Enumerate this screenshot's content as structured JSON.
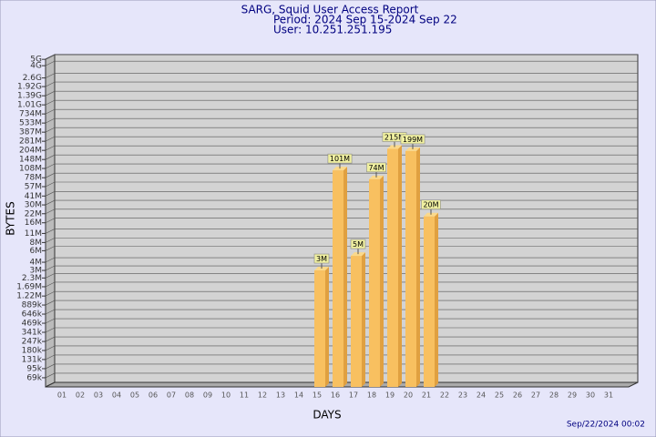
{
  "chart_data": {
    "type": "bar",
    "title": "SARG, Squid User Access Report",
    "subtitle_lines": [
      "Period: 2024 Sep 15-2024 Sep 22",
      "User: 10.251.251.195"
    ],
    "x_label": "DAYS",
    "y_label": "BYTES",
    "timestamp": "Sep/22/2024 00:02",
    "log_scale": true,
    "grid": true,
    "color": "#f8c060",
    "categories": [
      "01",
      "02",
      "03",
      "04",
      "05",
      "06",
      "07",
      "08",
      "09",
      "10",
      "11",
      "12",
      "13",
      "14",
      "15",
      "16",
      "17",
      "18",
      "19",
      "20",
      "21",
      "22",
      "23",
      "24",
      "25",
      "26",
      "27",
      "28",
      "29",
      "30",
      "31"
    ],
    "values": [
      null,
      null,
      null,
      null,
      null,
      null,
      null,
      null,
      null,
      null,
      null,
      null,
      null,
      null,
      3000000,
      101000000,
      5000000,
      74000000,
      215000000,
      199000000,
      20000000,
      null,
      null,
      null,
      null,
      null,
      null,
      null,
      null,
      null,
      null
    ],
    "value_labels": [
      null,
      null,
      null,
      null,
      null,
      null,
      null,
      null,
      null,
      null,
      null,
      null,
      null,
      null,
      "3M",
      "101M",
      "5M",
      "74M",
      "215M",
      "199M",
      "20M",
      null,
      null,
      null,
      null,
      null,
      null,
      null,
      null,
      null,
      null
    ],
    "ylim": [
      50000,
      5900000000
    ],
    "yticks": [
      {
        "value": 69000,
        "label": "69k"
      },
      {
        "value": 95000,
        "label": "95k"
      },
      {
        "value": 131000,
        "label": "131k"
      },
      {
        "value": 180000,
        "label": "180k"
      },
      {
        "value": 247000,
        "label": "247k"
      },
      {
        "value": 341000,
        "label": "341k"
      },
      {
        "value": 469000,
        "label": "469k"
      },
      {
        "value": 646000,
        "label": "646k"
      },
      {
        "value": 889000,
        "label": "889k"
      },
      {
        "value": 1220000,
        "label": "1.22M"
      },
      {
        "value": 1690000,
        "label": "1.69M"
      },
      {
        "value": 2300000,
        "label": "2.3M"
      },
      {
        "value": 3000000,
        "label": "3M"
      },
      {
        "value": 4000000,
        "label": "4M"
      },
      {
        "value": 6000000,
        "label": "6M"
      },
      {
        "value": 8000000,
        "label": "8M"
      },
      {
        "value": 11000000,
        "label": "11M"
      },
      {
        "value": 16000000,
        "label": "16M"
      },
      {
        "value": 22000000,
        "label": "22M"
      },
      {
        "value": 30000000,
        "label": "30M"
      },
      {
        "value": 41000000,
        "label": "41M"
      },
      {
        "value": 57000000,
        "label": "57M"
      },
      {
        "value": 78000000,
        "label": "78M"
      },
      {
        "value": 108000000,
        "label": "108M"
      },
      {
        "value": 148000000,
        "label": "148M"
      },
      {
        "value": 204000000,
        "label": "204M"
      },
      {
        "value": 281000000,
        "label": "281M"
      },
      {
        "value": 387000000,
        "label": "387M"
      },
      {
        "value": 533000000,
        "label": "533M"
      },
      {
        "value": 734000000,
        "label": "734M"
      },
      {
        "value": 1010000000,
        "label": "1.01G"
      },
      {
        "value": 1390000000,
        "label": "1.39G"
      },
      {
        "value": 1920000000,
        "label": "1.92G"
      },
      {
        "value": 2600000000,
        "label": "2.6G"
      },
      {
        "value": 4000000000,
        "label": "4G"
      },
      {
        "value": 5000000000,
        "label": "5G"
      }
    ]
  }
}
